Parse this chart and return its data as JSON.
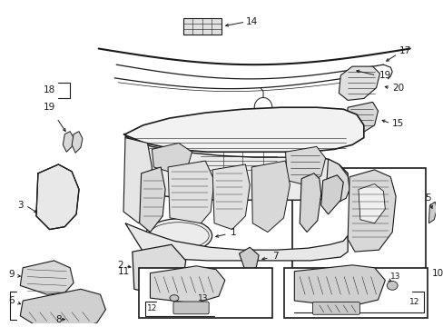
{
  "bg": "#ffffff",
  "lc": "#1a1a1a",
  "tc": "#1a1a1a",
  "fw": 4.89,
  "fh": 3.6,
  "dpi": 100
}
